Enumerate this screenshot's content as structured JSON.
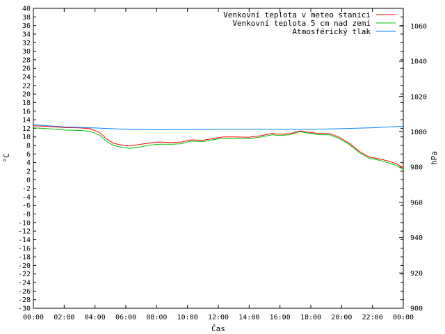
{
  "chart_data": {
    "type": "line",
    "title": "",
    "xlabel": "Čas",
    "ylabel_left": "°C",
    "ylabel_right": "hPa",
    "x_ticks": [
      "00:00",
      "02:00",
      "04:00",
      "06:00",
      "08:00",
      "10:00",
      "12:00",
      "14:00",
      "16:00",
      "18:00",
      "20:00",
      "22:00",
      "00:00"
    ],
    "xlim_hours": [
      0,
      24
    ],
    "ylim_left": [
      -30,
      40
    ],
    "y_left_step": 2,
    "ylim_right": [
      900,
      1070
    ],
    "y_right_ticks": [
      900,
      920,
      940,
      960,
      980,
      1000,
      1020,
      1040,
      1060
    ],
    "grid": false,
    "legend_position": "top-right",
    "series": [
      {
        "name": "Venkovní teplota v meteo stanici",
        "axis": "left",
        "color": "#ff0000",
        "points": [
          [
            0,
            12.6
          ],
          [
            1,
            12.4
          ],
          [
            2,
            12.2
          ],
          [
            3,
            12.1
          ],
          [
            3.7,
            11.9
          ],
          [
            4.3,
            11.0
          ],
          [
            4.8,
            9.4
          ],
          [
            5.2,
            8.5
          ],
          [
            5.8,
            8.0
          ],
          [
            6.3,
            7.9
          ],
          [
            7,
            8.3
          ],
          [
            7.6,
            8.6
          ],
          [
            8.2,
            8.8
          ],
          [
            9,
            8.7
          ],
          [
            9.6,
            8.8
          ],
          [
            10.2,
            9.3
          ],
          [
            11,
            9.2
          ],
          [
            11.6,
            9.6
          ],
          [
            12.3,
            10.0
          ],
          [
            13,
            10.0
          ],
          [
            14,
            9.9
          ],
          [
            14.8,
            10.3
          ],
          [
            15.5,
            10.8
          ],
          [
            16,
            10.6
          ],
          [
            16.6,
            10.7
          ],
          [
            17.3,
            11.4
          ],
          [
            17.8,
            11.1
          ],
          [
            18.5,
            10.8
          ],
          [
            19.2,
            10.8
          ],
          [
            19.8,
            10.0
          ],
          [
            20.5,
            8.5
          ],
          [
            21.2,
            6.5
          ],
          [
            21.8,
            5.3
          ],
          [
            22.4,
            4.9
          ],
          [
            23,
            4.4
          ],
          [
            23.5,
            3.8
          ],
          [
            24,
            2.8
          ]
        ]
      },
      {
        "name": "Venkovní teplota 5 cm nad zemí",
        "axis": "left",
        "color": "#00c000",
        "points": [
          [
            0,
            12.1
          ],
          [
            1,
            11.9
          ],
          [
            2,
            11.6
          ],
          [
            3,
            11.5
          ],
          [
            3.7,
            11.3
          ],
          [
            4.3,
            10.4
          ],
          [
            4.8,
            8.8
          ],
          [
            5.2,
            8.0
          ],
          [
            5.8,
            7.5
          ],
          [
            6.3,
            7.3
          ],
          [
            7,
            7.7
          ],
          [
            7.6,
            8.1
          ],
          [
            8.2,
            8.3
          ],
          [
            9,
            8.3
          ],
          [
            9.6,
            8.4
          ],
          [
            10.2,
            9.0
          ],
          [
            11,
            8.9
          ],
          [
            11.6,
            9.3
          ],
          [
            12.3,
            9.7
          ],
          [
            13,
            9.6
          ],
          [
            14,
            9.6
          ],
          [
            14.8,
            10.0
          ],
          [
            15.5,
            10.5
          ],
          [
            16,
            10.3
          ],
          [
            16.6,
            10.5
          ],
          [
            17.3,
            11.2
          ],
          [
            17.8,
            10.9
          ],
          [
            18.5,
            10.5
          ],
          [
            19.2,
            10.5
          ],
          [
            19.8,
            9.7
          ],
          [
            20.5,
            8.2
          ],
          [
            21.2,
            6.2
          ],
          [
            21.8,
            5.0
          ],
          [
            22.4,
            4.6
          ],
          [
            23,
            4.0
          ],
          [
            23.5,
            3.4
          ],
          [
            24,
            2.4
          ]
        ]
      },
      {
        "name": "Atmosférický tlak",
        "axis": "right",
        "color": "#0080ff",
        "points": [
          [
            0,
            1004
          ],
          [
            2,
            1002.8
          ],
          [
            4,
            1002.2
          ],
          [
            6,
            1001.5
          ],
          [
            8,
            1001.2
          ],
          [
            10,
            1001.3
          ],
          [
            12,
            1001.5
          ],
          [
            14,
            1001.5
          ],
          [
            16,
            1001.4
          ],
          [
            18,
            1001.4
          ],
          [
            20,
            1001.8
          ],
          [
            22,
            1002.3
          ],
          [
            24,
            1003.2
          ]
        ]
      }
    ]
  }
}
